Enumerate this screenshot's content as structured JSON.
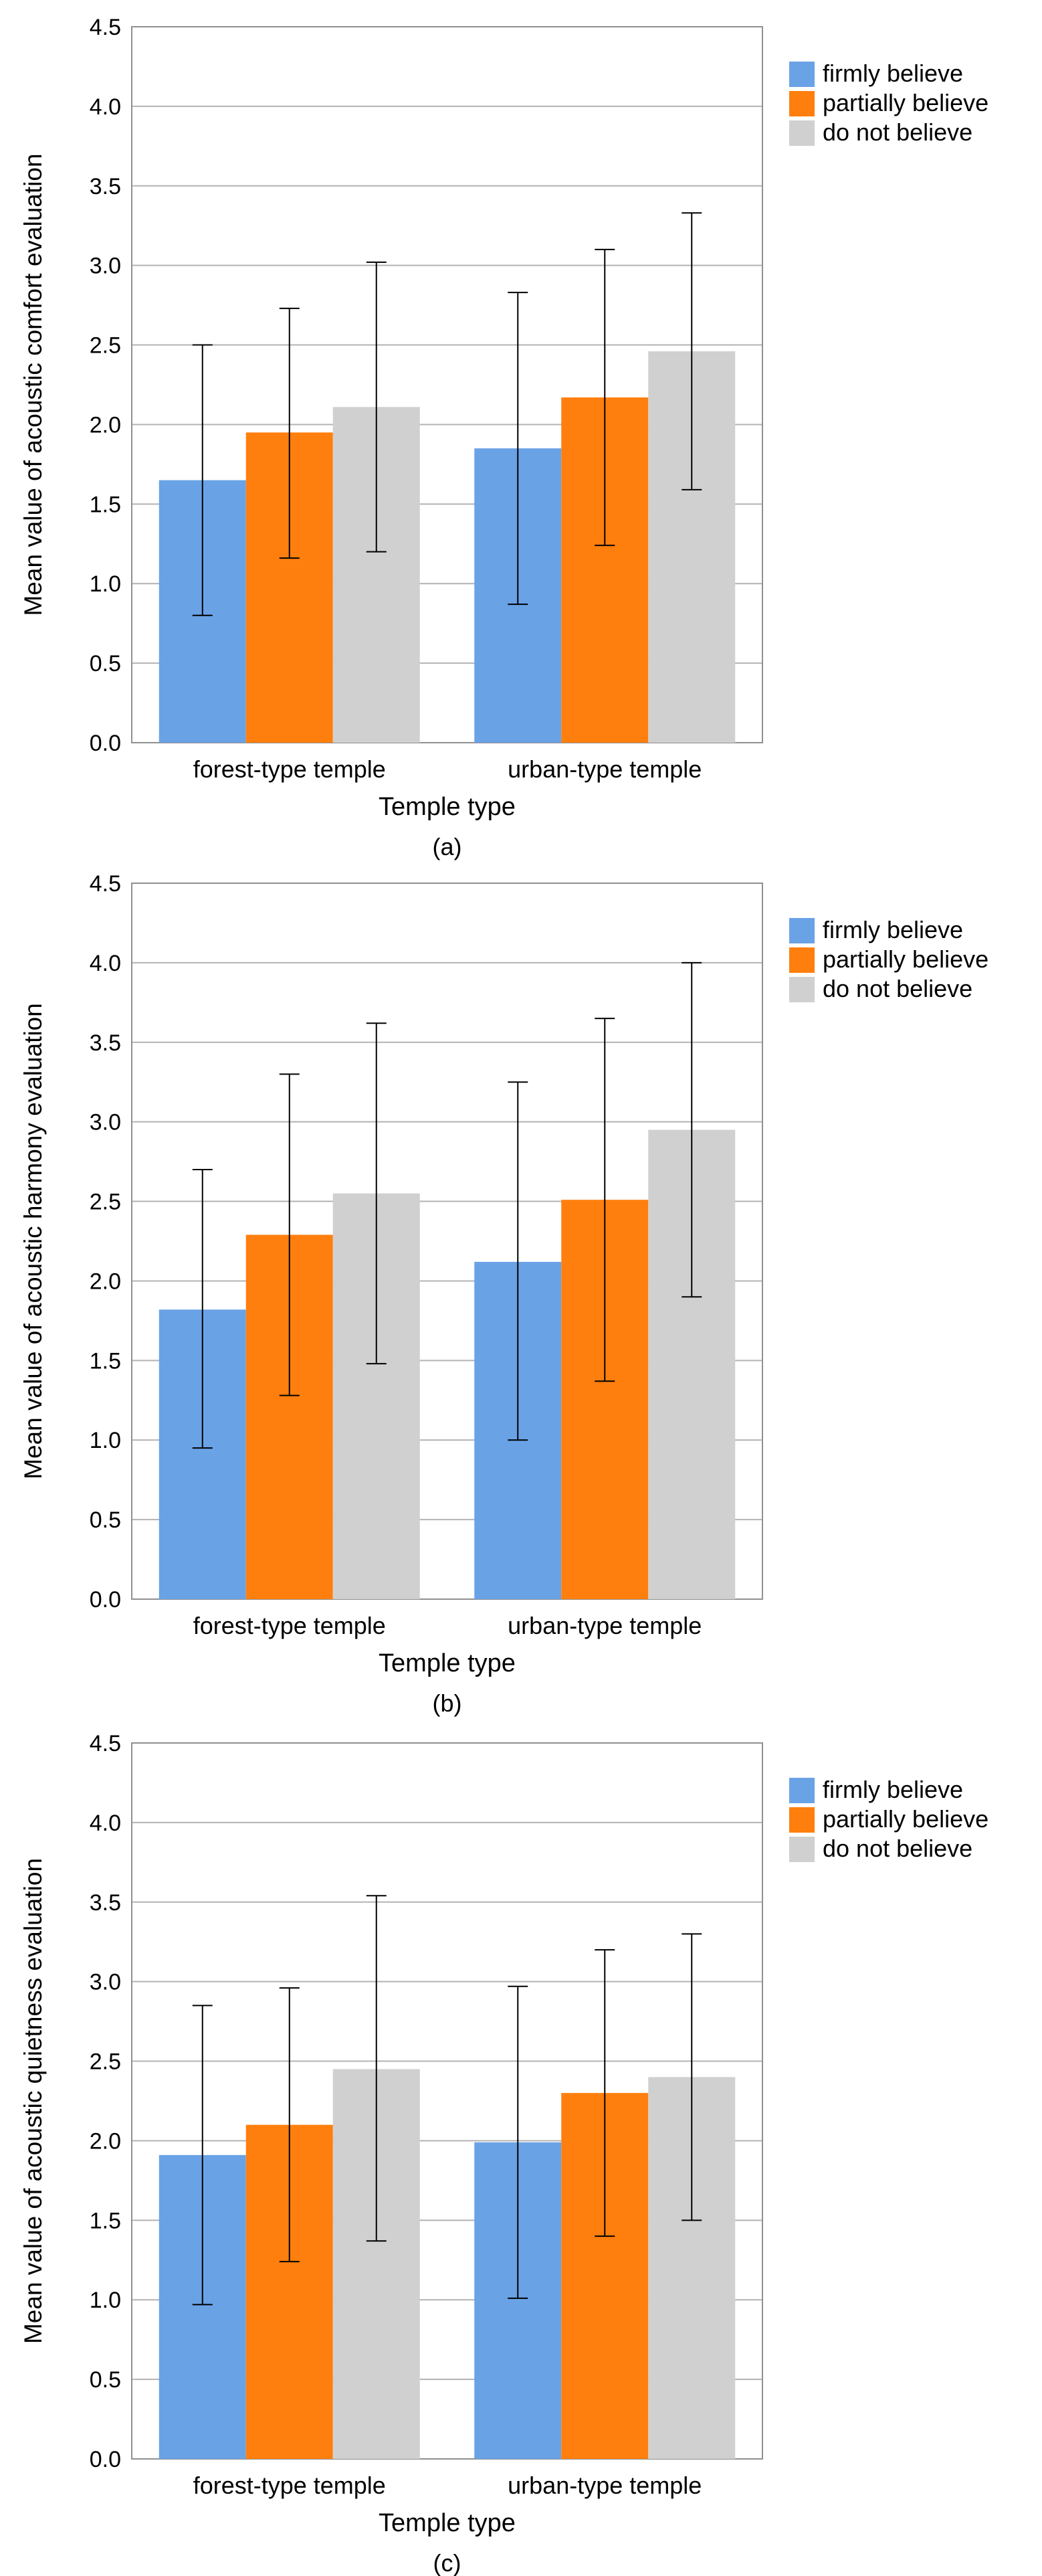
{
  "colors": {
    "firmly_believe": "#6aa2e6",
    "partially_believe": "#ff7f0e",
    "do_not_believe": "#d0d0d0",
    "gridline": "#b3b3b3",
    "axis": "#909090",
    "error_bar": "#000000"
  },
  "chart_data": [
    {
      "type": "bar",
      "title": "",
      "panel_label": "(a)",
      "xlabel": "Temple type",
      "ylabel": "Mean value of acoustic comfort evaluation",
      "categories": [
        "forest-type temple",
        "urban-type temple"
      ],
      "ylim": [
        0,
        4.5
      ],
      "yticks": [
        "0.0",
        "0.5",
        "1.0",
        "1.5",
        "2.0",
        "2.5",
        "3.0",
        "3.5",
        "4.0",
        "4.5"
      ],
      "grid": true,
      "legend_position": "top-right",
      "series": [
        {
          "name": "firmly believe",
          "color": "#6aa2e6",
          "values": [
            1.65,
            1.85
          ],
          "err_low": [
            0.8,
            0.87
          ],
          "err_high": [
            2.5,
            2.83
          ]
        },
        {
          "name": "partially believe",
          "color": "#ff7f0e",
          "values": [
            1.95,
            2.17
          ],
          "err_low": [
            1.16,
            1.24
          ],
          "err_high": [
            2.73,
            3.1
          ]
        },
        {
          "name": "do not believe",
          "color": "#d0d0d0",
          "values": [
            2.11,
            2.46
          ],
          "err_low": [
            1.2,
            1.59
          ],
          "err_high": [
            3.02,
            3.33
          ]
        }
      ]
    },
    {
      "type": "bar",
      "title": "",
      "panel_label": "(b)",
      "xlabel": "Temple type",
      "ylabel": "Mean value of acoustic harmony evaluation",
      "categories": [
        "forest-type temple",
        "urban-type temple"
      ],
      "ylim": [
        0,
        4.5
      ],
      "yticks": [
        "0.0",
        "0.5",
        "1.0",
        "1.5",
        "2.0",
        "2.5",
        "3.0",
        "3.5",
        "4.0",
        "4.5"
      ],
      "grid": true,
      "legend_position": "top-right",
      "series": [
        {
          "name": "firmly believe",
          "color": "#6aa2e6",
          "values": [
            1.82,
            2.12
          ],
          "err_low": [
            0.95,
            1.0
          ],
          "err_high": [
            2.7,
            3.25
          ]
        },
        {
          "name": "partially believe",
          "color": "#ff7f0e",
          "values": [
            2.29,
            2.51
          ],
          "err_low": [
            1.28,
            1.37
          ],
          "err_high": [
            3.3,
            3.65
          ]
        },
        {
          "name": "do not believe",
          "color": "#d0d0d0",
          "values": [
            2.55,
            2.95
          ],
          "err_low": [
            1.48,
            1.9
          ],
          "err_high": [
            3.62,
            4.0
          ]
        }
      ]
    },
    {
      "type": "bar",
      "title": "",
      "panel_label": "(c)",
      "xlabel": "Temple type",
      "ylabel": "Mean value of acoustic quietness evaluation",
      "categories": [
        "forest-type temple",
        "urban-type temple"
      ],
      "ylim": [
        0,
        4.5
      ],
      "yticks": [
        "0.0",
        "0.5",
        "1.0",
        "1.5",
        "2.0",
        "2.5",
        "3.0",
        "3.5",
        "4.0",
        "4.5"
      ],
      "grid": true,
      "legend_position": "top-right",
      "series": [
        {
          "name": "firmly believe",
          "color": "#6aa2e6",
          "values": [
            1.91,
            1.99
          ],
          "err_low": [
            0.97,
            1.01
          ],
          "err_high": [
            2.85,
            2.97
          ]
        },
        {
          "name": "partially believe",
          "color": "#ff7f0e",
          "values": [
            2.1,
            2.3
          ],
          "err_low": [
            1.24,
            1.4
          ],
          "err_high": [
            2.96,
            3.2
          ]
        },
        {
          "name": "do not believe",
          "color": "#d0d0d0",
          "values": [
            2.45,
            2.4
          ],
          "err_low": [
            1.37,
            1.5
          ],
          "err_high": [
            3.54,
            3.3
          ]
        }
      ]
    }
  ]
}
